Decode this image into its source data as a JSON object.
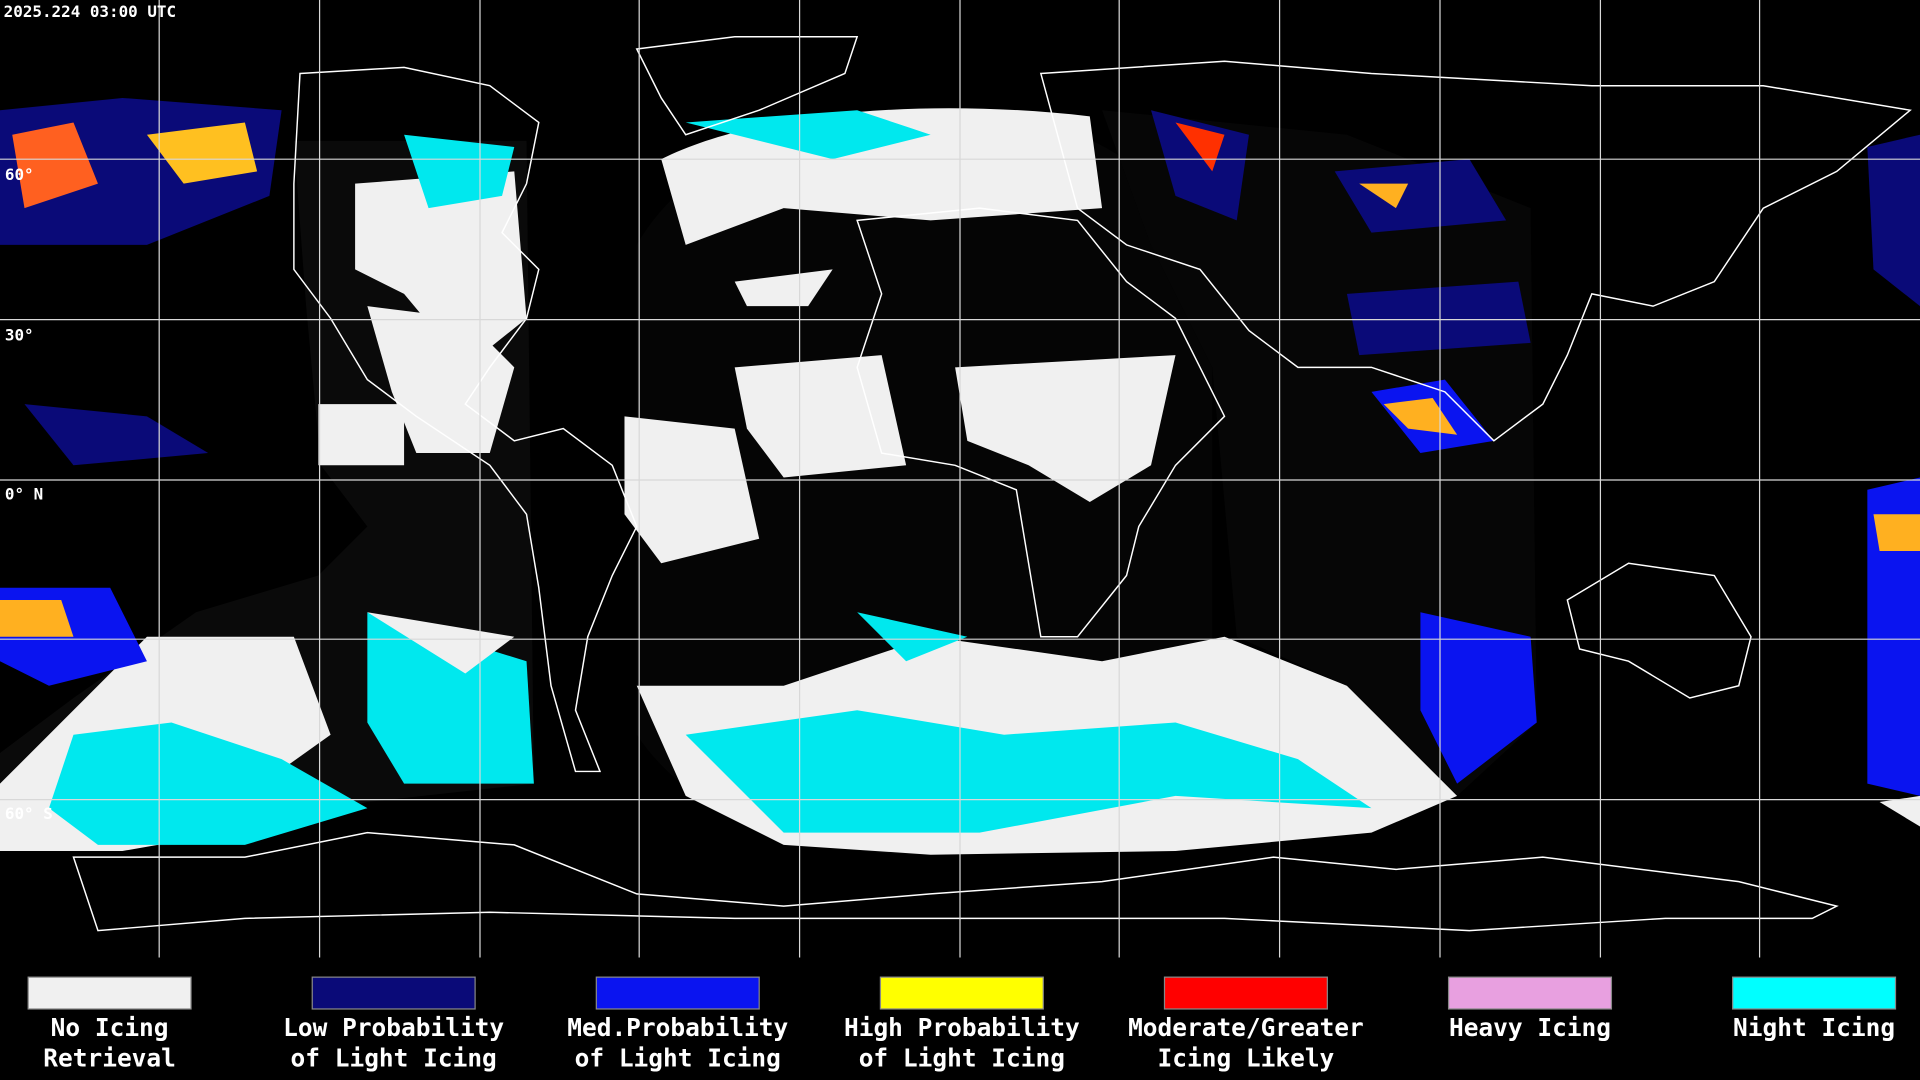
{
  "timestamp": "2025.224 03:00 UTC",
  "latitude_labels": [
    "60°",
    "30°",
    "0° N",
    "60° S"
  ],
  "legend": [
    {
      "label": [
        "No Icing",
        "Retrieval"
      ],
      "color": "#f0f0f0"
    },
    {
      "label": [
        "Low Probability",
        "of Light Icing"
      ],
      "color": "#0a0a78"
    },
    {
      "label": [
        "Med.Probability",
        "of Light Icing"
      ],
      "color": "#0a14f0"
    },
    {
      "label": [
        "High Probability",
        "of Light Icing"
      ],
      "color": "#ffff00"
    },
    {
      "label": [
        "Moderate/Greater",
        "Icing Likely"
      ],
      "color": "#ff0000"
    },
    {
      "label": [
        "Heavy Icing"
      ],
      "color": "#e8a0e0"
    },
    {
      "label": [
        "Night Icing"
      ],
      "color": "#00ffff"
    }
  ]
}
